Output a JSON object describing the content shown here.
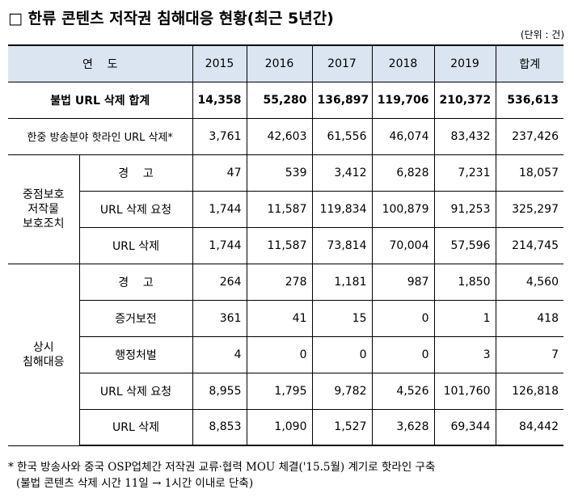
{
  "header": {
    "title": "□ 한류 콘텐츠 저작권 침해대응 현황(최근 5년간)",
    "unit": "(단위 : 건)"
  },
  "table": {
    "columns": [
      "연    도",
      "2015",
      "2016",
      "2017",
      "2018",
      "2019",
      "합계"
    ],
    "total": {
      "label": "불법 URL 삭제 합계",
      "values": [
        "14,358",
        "55,280",
        "136,897",
        "119,706",
        "210,372",
        "536,613"
      ]
    },
    "hotline": {
      "label": "한중 방송분야 핫라인 URL 삭제*",
      "values": [
        "3,761",
        "42,603",
        "61,556",
        "46,074",
        "83,432",
        "237,426"
      ]
    },
    "groups": [
      {
        "label": [
          "중점보호",
          "저작물",
          "보호조치"
        ],
        "rows": [
          {
            "label": "경    고",
            "values": [
              "47",
              "539",
              "3,412",
              "6,828",
              "7,231",
              "18,057"
            ]
          },
          {
            "label": "URL 삭제 요청",
            "values": [
              "1,744",
              "11,587",
              "119,834",
              "100,879",
              "91,253",
              "325,297"
            ]
          },
          {
            "label": "URL 삭제",
            "values": [
              "1,744",
              "11,587",
              "73,814",
              "70,004",
              "57,596",
              "214,745"
            ]
          }
        ]
      },
      {
        "label": [
          "상시",
          "침해대응"
        ],
        "rows": [
          {
            "label": "경    고",
            "values": [
              "264",
              "278",
              "1,181",
              "987",
              "1,850",
              "4,560"
            ]
          },
          {
            "label": "증거보전",
            "values": [
              "361",
              "41",
              "15",
              "0",
              "1",
              "418"
            ]
          },
          {
            "label": "행정처벌",
            "values": [
              "4",
              "0",
              "0",
              "0",
              "3",
              "7"
            ]
          },
          {
            "label": "URL 삭제 요청",
            "values": [
              "8,955",
              "1,795",
              "9,782",
              "4,526",
              "101,760",
              "126,818"
            ]
          },
          {
            "label": "URL 삭제",
            "values": [
              "8,853",
              "1,090",
              "1,527",
              "3,628",
              "69,344",
              "84,442"
            ]
          }
        ]
      }
    ]
  },
  "footnote": [
    "* 한국 방송사와 중국 OSP업체간 저작권 교류·협력 MOU 체결('15.5월) 계기로 핫라인 구축",
    "(불법 콘텐츠 삭제 시간 11일 → 1시간 이내로 단축)"
  ]
}
